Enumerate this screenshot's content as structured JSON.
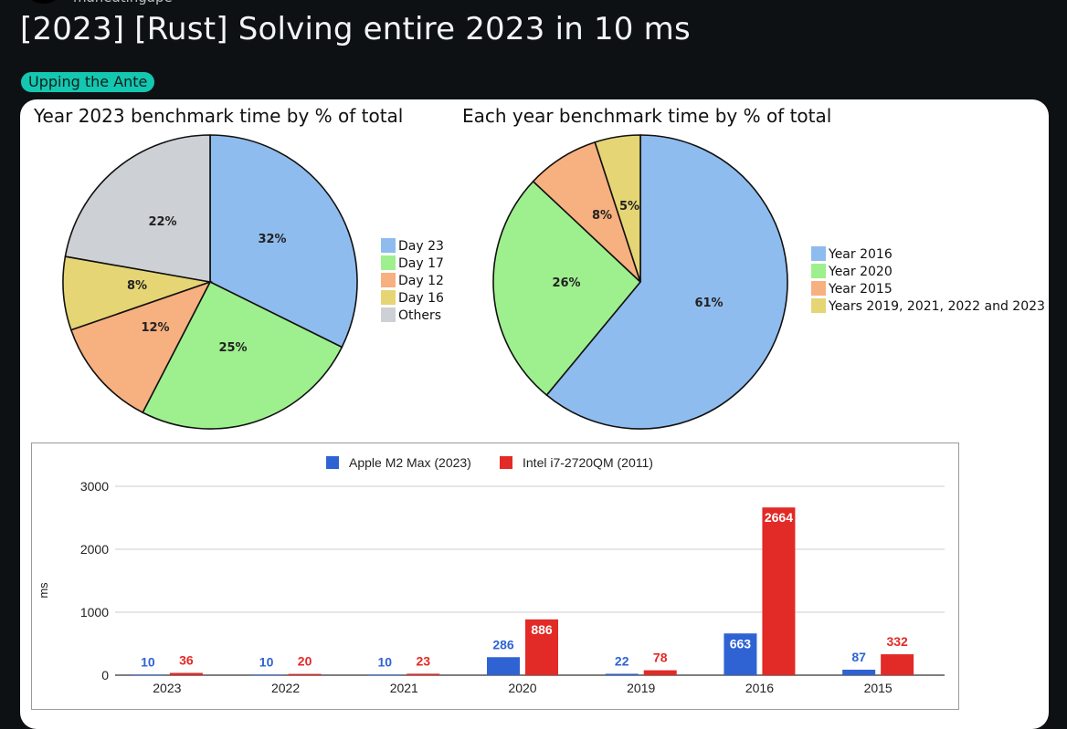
{
  "post": {
    "username": "maneatingape",
    "title": "[2023] [Rust] Solving entire 2023 in 10 ms",
    "flair": "Upping the Ante"
  },
  "colors": {
    "blue": "#8fbcee",
    "green": "#9ef08e",
    "orange": "#f7b07f",
    "yellow": "#e6d574",
    "grey": "#cdd1d6",
    "bar_blue": "#2f63d4",
    "bar_red": "#e22a27",
    "flair_bg": "#14c7b0"
  },
  "chart_data": [
    {
      "type": "pie",
      "title": "Year 2023 benchmark time by % of total",
      "legend": "right",
      "slices": [
        {
          "label": "Day 23",
          "value": 32,
          "text": "32%",
          "color": "#8fbcee"
        },
        {
          "label": "Day 17",
          "value": 25,
          "text": "25%",
          "color": "#9ef08e"
        },
        {
          "label": "Day 12",
          "value": 12,
          "text": "12%",
          "color": "#f7b07f"
        },
        {
          "label": "Day 16",
          "value": 8,
          "text": "8%",
          "color": "#e6d574"
        },
        {
          "label": "Others",
          "value": 22,
          "text": "22%",
          "color": "#cdd1d6"
        }
      ]
    },
    {
      "type": "pie",
      "title": "Each year benchmark time by % of total",
      "legend": "right",
      "slices": [
        {
          "label": "Year 2016",
          "value": 61,
          "text": "61%",
          "color": "#8fbcee"
        },
        {
          "label": "Year 2020",
          "value": 26,
          "text": "26%",
          "color": "#9ef08e"
        },
        {
          "label": "Year 2015",
          "value": 8,
          "text": "8%",
          "color": "#f7b07f"
        },
        {
          "label": "Years 2019, 2021, 2022 and 2023",
          "value": 5,
          "text": "5%",
          "color": "#e6d574"
        }
      ]
    },
    {
      "type": "bar",
      "ylabel": "ms",
      "ylim": [
        0,
        3000
      ],
      "yticks": [
        "0",
        "1000",
        "2000",
        "3000"
      ],
      "grid": true,
      "legend": "top",
      "categories": [
        "2023",
        "2022",
        "2021",
        "2020",
        "2019",
        "2016",
        "2015"
      ],
      "series": [
        {
          "name": "Apple M2 Max (2023)",
          "color": "#2f63d4",
          "values": [
            10,
            10,
            10,
            286,
            22,
            663,
            87
          ]
        },
        {
          "name": "Intel i7-2720QM (2011)",
          "color": "#e22a27",
          "values": [
            36,
            20,
            23,
            886,
            78,
            2664,
            332
          ]
        }
      ]
    }
  ]
}
